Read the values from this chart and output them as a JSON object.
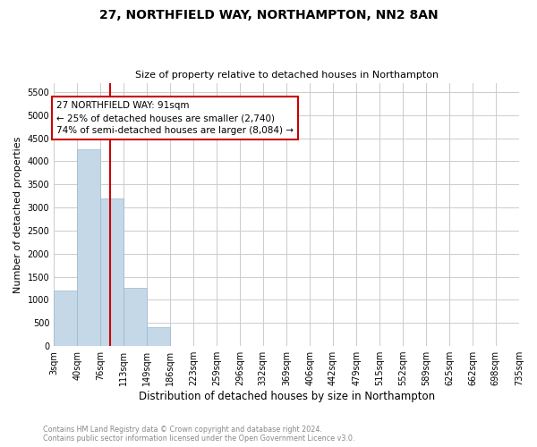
{
  "title": "27, NORTHFIELD WAY, NORTHAMPTON, NN2 8AN",
  "subtitle": "Size of property relative to detached houses in Northampton",
  "xlabel": "Distribution of detached houses by size in Northampton",
  "ylabel": "Number of detached properties",
  "footnote": "Contains HM Land Registry data © Crown copyright and database right 2024.\nContains public sector information licensed under the Open Government Licence v3.0.",
  "annotation_line1": "27 NORTHFIELD WAY: 91sqm",
  "annotation_line2": "← 25% of detached houses are smaller (2,740)",
  "annotation_line3": "74% of semi-detached houses are larger (8,084) →",
  "property_size_sqm": 91,
  "bins": [
    3,
    40,
    76,
    113,
    149,
    186,
    223,
    259,
    296,
    332,
    369,
    406,
    442,
    479,
    515,
    552,
    589,
    625,
    662,
    698,
    735
  ],
  "counts": [
    1200,
    4250,
    3200,
    1250,
    400,
    0,
    0,
    0,
    0,
    0,
    0,
    0,
    0,
    0,
    0,
    0,
    0,
    0,
    0,
    0
  ],
  "bar_color": "#c5d8e8",
  "bar_edgecolor": "#9ab8cc",
  "marker_color": "#cc0000",
  "annotation_box_color": "#cc0000",
  "background_color": "#ffffff",
  "grid_color": "#cccccc",
  "ylim": [
    0,
    5700
  ],
  "yticks": [
    0,
    500,
    1000,
    1500,
    2000,
    2500,
    3000,
    3500,
    4000,
    4500,
    5000,
    5500
  ]
}
